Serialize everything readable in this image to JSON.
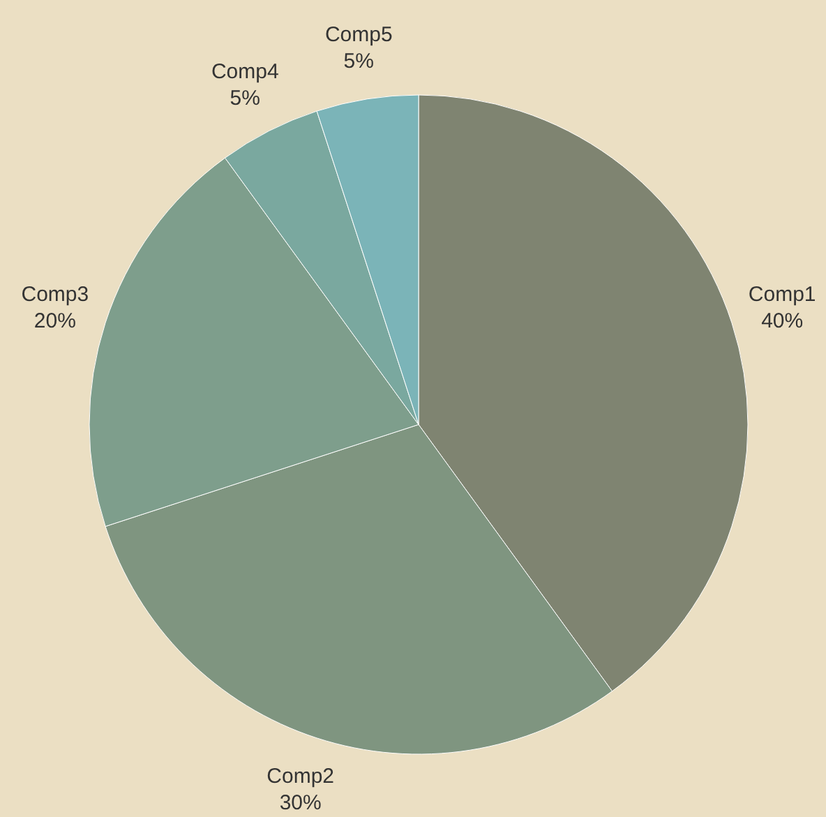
{
  "chart_data": {
    "type": "pie",
    "categories": [
      "Comp1",
      "Comp2",
      "Comp3",
      "Comp4",
      "Comp5"
    ],
    "values": [
      40,
      30,
      20,
      5,
      5
    ],
    "value_labels": [
      "40%",
      "30%",
      "20%",
      "5%",
      "5%"
    ],
    "colors": [
      "#7f8471",
      "#7f9580",
      "#7e9e8c",
      "#7aa89f",
      "#7bb4b8"
    ]
  }
}
